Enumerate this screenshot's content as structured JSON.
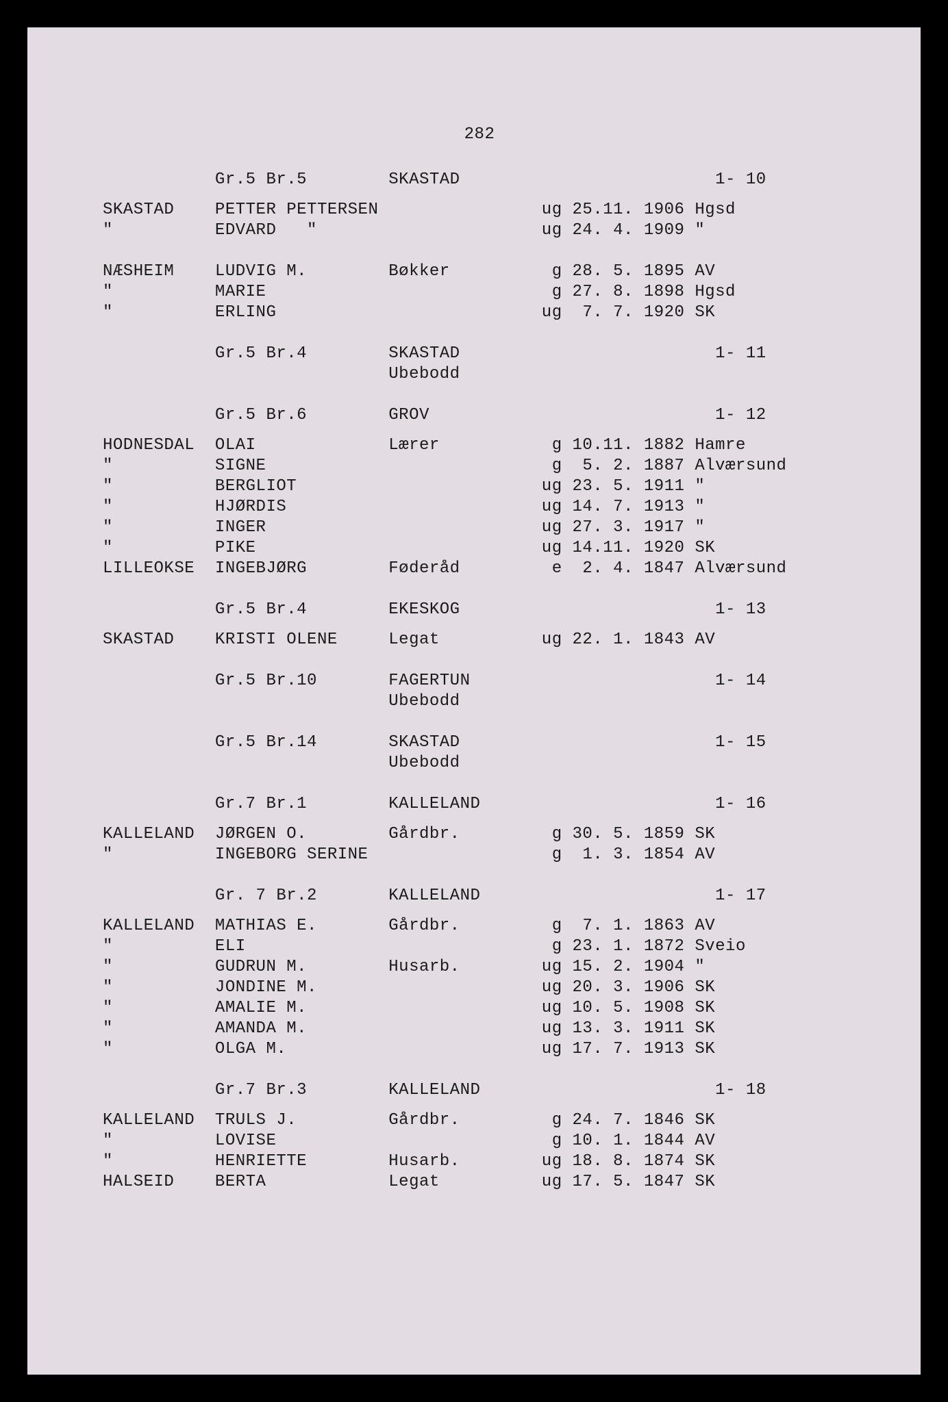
{
  "page_number": "282",
  "font_color": "#1a1a1a",
  "background_color": "#e3dce2",
  "page_border_color": "#000000",
  "font_family": "Courier New",
  "font_size_pt": 18,
  "sections": [
    {
      "header": {
        "col1": "",
        "col2": "Gr.5 Br.5",
        "col3": "SKASTAD",
        "col4": "",
        "col5": "",
        "col6": "1- 10"
      },
      "rows": [
        {
          "col1": "SKASTAD",
          "col2": "PETTER PETTERSEN",
          "col3": "",
          "col4": "ug 25.11.",
          "col5": "1906",
          "col6": "Hgsd"
        },
        {
          "col1": "\"",
          "col2": "EDVARD   \"",
          "col3": "",
          "col4": "ug 24. 4.",
          "col5": "1909",
          "col6": "\""
        }
      ]
    },
    {
      "rows": [
        {
          "col1": "NÆSHEIM",
          "col2": "LUDVIG M.",
          "col3": "Bøkker",
          "col4": "g 28. 5.",
          "col5": "1895",
          "col6": "AV"
        },
        {
          "col1": "\"",
          "col2": "MARIE",
          "col3": "",
          "col4": "g 27. 8.",
          "col5": "1898",
          "col6": "Hgsd"
        },
        {
          "col1": "\"",
          "col2": "ERLING",
          "col3": "",
          "col4": "ug  7. 7.",
          "col5": "1920",
          "col6": "SK"
        }
      ]
    },
    {
      "header": {
        "col1": "",
        "col2": "Gr.5 Br.4",
        "col3": "SKASTAD",
        "col4": "",
        "col5": "",
        "col6": "1- 11"
      },
      "sub": {
        "col3": "Ubebodd"
      }
    },
    {
      "header": {
        "col1": "",
        "col2": "Gr.5 Br.6",
        "col3": "GROV",
        "col4": "",
        "col5": "",
        "col6": "1- 12"
      },
      "rows": [
        {
          "col1": "HODNESDAL",
          "col2": "OLAI",
          "col3": "Lærer",
          "col4": "g 10.11.",
          "col5": "1882",
          "col6": "Hamre"
        },
        {
          "col1": "\"",
          "col2": "SIGNE",
          "col3": "",
          "col4": "g  5. 2.",
          "col5": "1887",
          "col6": "Alværsund"
        },
        {
          "col1": "\"",
          "col2": "BERGLIOT",
          "col3": "",
          "col4": "ug 23. 5.",
          "col5": "1911",
          "col6": "\""
        },
        {
          "col1": "\"",
          "col2": "HJØRDIS",
          "col3": "",
          "col4": "ug 14. 7.",
          "col5": "1913",
          "col6": "\""
        },
        {
          "col1": "\"",
          "col2": "INGER",
          "col3": "",
          "col4": "ug 27. 3.",
          "col5": "1917",
          "col6": "\""
        },
        {
          "col1": "\"",
          "col2": "PIKE",
          "col3": "",
          "col4": "ug 14.11.",
          "col5": "1920",
          "col6": "SK"
        },
        {
          "col1": "LILLEOKSE",
          "col2": "INGEBJØRG",
          "col3": "Føderåd",
          "col4": "e  2. 4.",
          "col5": "1847",
          "col6": "Alværsund"
        }
      ]
    },
    {
      "header": {
        "col1": "",
        "col2": "Gr.5 Br.4",
        "col3": "EKESKOG",
        "col4": "",
        "col5": "",
        "col6": "1- 13"
      },
      "rows": [
        {
          "col1": "SKASTAD",
          "col2": "KRISTI OLENE",
          "col3": "Legat",
          "col4": "ug 22. 1.",
          "col5": "1843",
          "col6": "AV"
        }
      ]
    },
    {
      "header": {
        "col1": "",
        "col2": "Gr.5 Br.10",
        "col3": "FAGERTUN",
        "col4": "",
        "col5": "",
        "col6": "1- 14"
      },
      "sub": {
        "col3": "Ubebodd"
      }
    },
    {
      "header": {
        "col1": "",
        "col2": "Gr.5 Br.14",
        "col3": "SKASTAD",
        "col4": "",
        "col5": "",
        "col6": "1- 15"
      },
      "sub": {
        "col3": "Ubebodd"
      }
    },
    {
      "header": {
        "col1": "",
        "col2": "Gr.7 Br.1",
        "col3": "KALLELAND",
        "col4": "",
        "col5": "",
        "col6": "1- 16"
      },
      "rows": [
        {
          "col1": "KALLELAND",
          "col2": "JØRGEN O.",
          "col3": "Gårdbr.",
          "col4": "g 30. 5.",
          "col5": "1859",
          "col6": "SK"
        },
        {
          "col1": "\"",
          "col2": "INGEBORG SERINE",
          "col3": "",
          "col4": "g  1. 3.",
          "col5": "1854",
          "col6": "AV"
        }
      ]
    },
    {
      "header": {
        "col1": "",
        "col2": "Gr. 7 Br.2",
        "col3": "KALLELAND",
        "col4": "",
        "col5": "",
        "col6": "1- 17"
      },
      "rows": [
        {
          "col1": "KALLELAND",
          "col2": "MATHIAS E.",
          "col3": "Gårdbr.",
          "col4": "g  7. 1.",
          "col5": "1863",
          "col6": "AV"
        },
        {
          "col1": "\"",
          "col2": "ELI",
          "col3": "",
          "col4": "g 23. 1.",
          "col5": "1872",
          "col6": "Sveio"
        },
        {
          "col1": "\"",
          "col2": "GUDRUN M.",
          "col3": "Husarb.",
          "col4": "ug 15. 2.",
          "col5": "1904",
          "col6": "\""
        },
        {
          "col1": "\"",
          "col2": "JONDINE M.",
          "col3": "",
          "col4": "ug 20. 3.",
          "col5": "1906",
          "col6": "SK"
        },
        {
          "col1": "\"",
          "col2": "AMALIE M.",
          "col3": "",
          "col4": "ug 10. 5.",
          "col5": "1908",
          "col6": "SK"
        },
        {
          "col1": "\"",
          "col2": "AMANDA M.",
          "col3": "",
          "col4": "ug 13. 3.",
          "col5": "1911",
          "col6": "SK"
        },
        {
          "col1": "\"",
          "col2": "OLGA M.",
          "col3": "",
          "col4": "ug 17. 7.",
          "col5": "1913",
          "col6": "SK"
        }
      ]
    },
    {
      "header": {
        "col1": "",
        "col2": "Gr.7 Br.3",
        "col3": "KALLELAND",
        "col4": "",
        "col5": "",
        "col6": "1- 18"
      },
      "rows": [
        {
          "col1": "KALLELAND",
          "col2": "TRULS J.",
          "col3": "Gårdbr.",
          "col4": "g 24. 7.",
          "col5": "1846",
          "col6": "SK"
        },
        {
          "col1": "\"",
          "col2": "LOVISE",
          "col3": "",
          "col4": "g 10. 1.",
          "col5": "1844",
          "col6": "AV"
        },
        {
          "col1": "\"",
          "col2": "HENRIETTE",
          "col3": "Husarb.",
          "col4": "ug 18. 8.",
          "col5": "1874",
          "col6": "SK"
        },
        {
          "col1": "HALSEID",
          "col2": "BERTA",
          "col3": "Legat",
          "col4": "ug 17. 5.",
          "col5": "1847",
          "col6": "SK"
        }
      ]
    }
  ],
  "column_widths_chars": {
    "col1": 11,
    "col2": 17,
    "col3": 14,
    "col4": 11,
    "col5": 5,
    "col6": 12
  }
}
